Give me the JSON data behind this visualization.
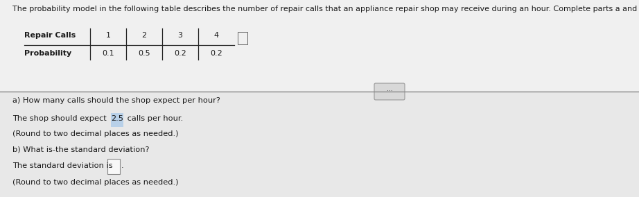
{
  "title": "The probability model in the following table describes the number of repair calls that an appliance repair shop may receive during an hour. Complete parts a and b.",
  "table_headers": [
    "Repair Calls",
    "1",
    "2",
    "3",
    "4"
  ],
  "table_row": [
    "Probability",
    "0.1",
    "0.5",
    "0.2",
    "0.2"
  ],
  "part_a_question": "a) How many calls should the shop expect per hour?",
  "part_a_answer_prefix": "The shop should expect ",
  "part_a_answer_value": "2.5",
  "part_a_answer_suffix": " calls per hour.",
  "part_a_note": "(Round to two decimal places as needed.)",
  "part_b_question": "b) What is‑the standard deviation?",
  "part_b_answer_prefix": "The standard deviation is ",
  "part_b_note": "(Round to two decimal places as needed.)",
  "bg_color": "#f0f0f0",
  "upper_bg": "#f0f0f0",
  "lower_bg": "#e8e8e8",
  "text_color": "#1a1a1a",
  "highlight_color": "#b8d0e8",
  "table_line_color": "#222222",
  "divider_color": "#888888",
  "dots_button_color": "#d8d8d8",
  "dots_button_border": "#999999",
  "answer_box_color": "#f8f8f8",
  "answer_box_border": "#888888"
}
